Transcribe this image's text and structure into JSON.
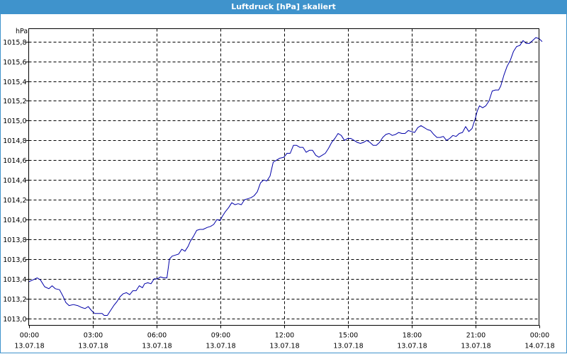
{
  "window": {
    "title": "Luftdruck [hPa] skaliert"
  },
  "chart_data": {
    "type": "line",
    "title": "Luftdruck [hPa] skaliert",
    "ylabel": "hPa",
    "xlabel": "",
    "ylim": [
      1012.93,
      1015.93
    ],
    "grid": true,
    "colors": {
      "line": "#0000a8",
      "grid": "#000000",
      "background": "#ffffff",
      "titlebar": "#3f93cc"
    },
    "y_ticks": [
      {
        "value": 1013.0,
        "label": "1013,0"
      },
      {
        "value": 1013.2,
        "label": "1013,2"
      },
      {
        "value": 1013.4,
        "label": "1013,4"
      },
      {
        "value": 1013.6,
        "label": "1013,6"
      },
      {
        "value": 1013.8,
        "label": "1013,8"
      },
      {
        "value": 1014.0,
        "label": "1014,0"
      },
      {
        "value": 1014.2,
        "label": "1014,2"
      },
      {
        "value": 1014.4,
        "label": "1014,4"
      },
      {
        "value": 1014.6,
        "label": "1014,6"
      },
      {
        "value": 1014.8,
        "label": "1014,8"
      },
      {
        "value": 1015.0,
        "label": "1015,0"
      },
      {
        "value": 1015.2,
        "label": "1015,2"
      },
      {
        "value": 1015.4,
        "label": "1015,4"
      },
      {
        "value": 1015.6,
        "label": "1015,6"
      },
      {
        "value": 1015.8,
        "label": "1015,8"
      }
    ],
    "x_ticks": [
      {
        "time": "00:00",
        "date": "13.07.18"
      },
      {
        "time": "03:00",
        "date": "13.07.18"
      },
      {
        "time": "06:00",
        "date": "13.07.18"
      },
      {
        "time": "09:00",
        "date": "13.07.18"
      },
      {
        "time": "12:00",
        "date": "13.07.18"
      },
      {
        "time": "15:00",
        "date": "13.07.18"
      },
      {
        "time": "18:00",
        "date": "13.07.18"
      },
      {
        "time": "21:00",
        "date": "13.07.18"
      },
      {
        "time": "00:00",
        "date": "14.07.18"
      }
    ],
    "x_range_hours": [
      0,
      24
    ],
    "series": [
      {
        "points": [
          [
            0.0,
            1013.37
          ],
          [
            0.2,
            1013.39
          ],
          [
            0.4,
            1013.41
          ],
          [
            0.55,
            1013.39
          ],
          [
            0.75,
            1013.32
          ],
          [
            0.95,
            1013.3
          ],
          [
            1.1,
            1013.33
          ],
          [
            1.25,
            1013.3
          ],
          [
            1.45,
            1013.29
          ],
          [
            1.6,
            1013.23
          ],
          [
            1.75,
            1013.16
          ],
          [
            1.9,
            1013.13
          ],
          [
            2.1,
            1013.14
          ],
          [
            2.3,
            1013.13
          ],
          [
            2.5,
            1013.11
          ],
          [
            2.65,
            1013.1
          ],
          [
            2.8,
            1013.12
          ],
          [
            2.95,
            1013.08
          ],
          [
            3.1,
            1013.05
          ],
          [
            3.3,
            1013.05
          ],
          [
            3.45,
            1013.05
          ],
          [
            3.55,
            1013.03
          ],
          [
            3.7,
            1013.03
          ],
          [
            3.85,
            1013.08
          ],
          [
            4.0,
            1013.13
          ],
          [
            4.15,
            1013.17
          ],
          [
            4.3,
            1013.22
          ],
          [
            4.45,
            1013.25
          ],
          [
            4.6,
            1013.26
          ],
          [
            4.75,
            1013.24
          ],
          [
            4.9,
            1013.28
          ],
          [
            5.05,
            1013.28
          ],
          [
            5.2,
            1013.33
          ],
          [
            5.35,
            1013.31
          ],
          [
            5.45,
            1013.35
          ],
          [
            5.6,
            1013.36
          ],
          [
            5.75,
            1013.35
          ],
          [
            5.9,
            1013.4
          ],
          [
            6.05,
            1013.4
          ],
          [
            6.2,
            1013.42
          ],
          [
            6.35,
            1013.41
          ],
          [
            6.5,
            1013.41
          ],
          [
            6.62,
            1013.6
          ],
          [
            6.75,
            1013.63
          ],
          [
            6.9,
            1013.64
          ],
          [
            7.05,
            1013.65
          ],
          [
            7.2,
            1013.7
          ],
          [
            7.35,
            1013.68
          ],
          [
            7.5,
            1013.73
          ],
          [
            7.6,
            1013.78
          ],
          [
            7.75,
            1013.83
          ],
          [
            7.9,
            1013.89
          ],
          [
            8.05,
            1013.9
          ],
          [
            8.2,
            1013.9
          ],
          [
            8.4,
            1013.92
          ],
          [
            8.55,
            1013.93
          ],
          [
            8.7,
            1013.95
          ],
          [
            8.85,
            1014.0
          ],
          [
            9.0,
            1013.99
          ],
          [
            9.1,
            1014.03
          ],
          [
            9.25,
            1014.08
          ],
          [
            9.4,
            1014.12
          ],
          [
            9.55,
            1014.17
          ],
          [
            9.7,
            1014.15
          ],
          [
            9.85,
            1014.16
          ],
          [
            10.0,
            1014.15
          ],
          [
            10.15,
            1014.2
          ],
          [
            10.3,
            1014.21
          ],
          [
            10.45,
            1014.22
          ],
          [
            10.6,
            1014.24
          ],
          [
            10.75,
            1014.28
          ],
          [
            10.9,
            1014.37
          ],
          [
            11.05,
            1014.4
          ],
          [
            11.2,
            1014.39
          ],
          [
            11.35,
            1014.44
          ],
          [
            11.5,
            1014.58
          ],
          [
            11.65,
            1014.6
          ],
          [
            11.8,
            1014.62
          ],
          [
            12.0,
            1014.63
          ],
          [
            12.15,
            1014.67
          ],
          [
            12.3,
            1014.67
          ],
          [
            12.45,
            1014.75
          ],
          [
            12.6,
            1014.75
          ],
          [
            12.75,
            1014.73
          ],
          [
            12.9,
            1014.73
          ],
          [
            13.05,
            1014.68
          ],
          [
            13.2,
            1014.7
          ],
          [
            13.35,
            1014.7
          ],
          [
            13.5,
            1014.65
          ],
          [
            13.65,
            1014.63
          ],
          [
            13.8,
            1014.65
          ],
          [
            13.95,
            1014.67
          ],
          [
            14.1,
            1014.72
          ],
          [
            14.25,
            1014.78
          ],
          [
            14.4,
            1014.82
          ],
          [
            14.55,
            1014.87
          ],
          [
            14.7,
            1014.85
          ],
          [
            14.85,
            1014.8
          ],
          [
            15.0,
            1014.82
          ],
          [
            15.15,
            1014.82
          ],
          [
            15.3,
            1014.8
          ],
          [
            15.45,
            1014.78
          ],
          [
            15.6,
            1014.77
          ],
          [
            15.75,
            1014.78
          ],
          [
            15.9,
            1014.8
          ],
          [
            16.05,
            1014.78
          ],
          [
            16.2,
            1014.75
          ],
          [
            16.35,
            1014.75
          ],
          [
            16.5,
            1014.78
          ],
          [
            16.65,
            1014.83
          ],
          [
            16.8,
            1014.86
          ],
          [
            16.95,
            1014.87
          ],
          [
            17.1,
            1014.85
          ],
          [
            17.25,
            1014.86
          ],
          [
            17.4,
            1014.88
          ],
          [
            17.55,
            1014.87
          ],
          [
            17.7,
            1014.87
          ],
          [
            17.85,
            1014.9
          ],
          [
            18.0,
            1014.89
          ],
          [
            18.15,
            1014.88
          ],
          [
            18.3,
            1014.93
          ],
          [
            18.45,
            1014.95
          ],
          [
            18.6,
            1014.93
          ],
          [
            18.75,
            1014.91
          ],
          [
            18.9,
            1014.9
          ],
          [
            19.05,
            1014.86
          ],
          [
            19.2,
            1014.83
          ],
          [
            19.35,
            1014.83
          ],
          [
            19.5,
            1014.84
          ],
          [
            19.65,
            1014.8
          ],
          [
            19.8,
            1014.82
          ],
          [
            19.95,
            1014.85
          ],
          [
            20.1,
            1014.84
          ],
          [
            20.25,
            1014.87
          ],
          [
            20.4,
            1014.88
          ],
          [
            20.55,
            1014.94
          ],
          [
            20.7,
            1014.89
          ],
          [
            20.85,
            1014.92
          ],
          [
            21.0,
            1015.02
          ],
          [
            21.1,
            1015.1
          ],
          [
            21.2,
            1015.15
          ],
          [
            21.35,
            1015.13
          ],
          [
            21.5,
            1015.15
          ],
          [
            21.65,
            1015.2
          ],
          [
            21.8,
            1015.3
          ],
          [
            21.95,
            1015.31
          ],
          [
            22.1,
            1015.31
          ],
          [
            22.2,
            1015.35
          ],
          [
            22.35,
            1015.46
          ],
          [
            22.5,
            1015.55
          ],
          [
            22.65,
            1015.61
          ],
          [
            22.8,
            1015.7
          ],
          [
            22.95,
            1015.75
          ],
          [
            23.1,
            1015.76
          ],
          [
            23.25,
            1015.81
          ],
          [
            23.4,
            1015.78
          ],
          [
            23.55,
            1015.78
          ],
          [
            23.7,
            1015.81
          ],
          [
            23.85,
            1015.84
          ],
          [
            24.0,
            1015.83
          ],
          [
            24.15,
            1015.8
          ]
        ]
      }
    ]
  }
}
